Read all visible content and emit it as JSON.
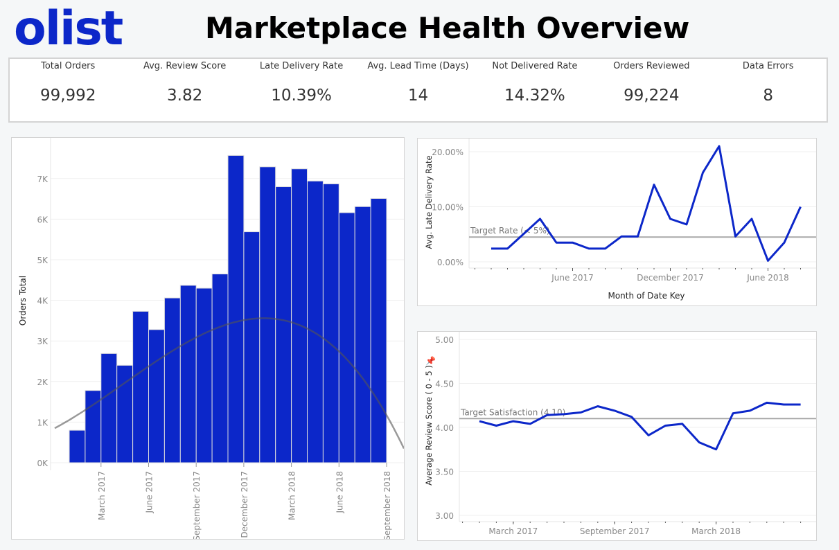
{
  "header": {
    "logo": "olist",
    "title": "Marketplace Health Overview"
  },
  "kpis": [
    {
      "label": "Total Orders",
      "value": "99,992"
    },
    {
      "label": "Avg. Review Score",
      "value": "3.82"
    },
    {
      "label": "Late Delivery Rate",
      "value": "10.39%"
    },
    {
      "label": "Avg. Lead Time (Days)",
      "value": "14"
    },
    {
      "label": "Not Delivered Rate",
      "value": "14.32%"
    },
    {
      "label": "Orders Reviewed",
      "value": "99,224"
    },
    {
      "label": "Data Errors",
      "value": "8"
    }
  ],
  "colors": {
    "accent": "#0c27c9",
    "trend": "#8a8a8a",
    "reference": "#a8a8a8"
  },
  "chart_data": [
    {
      "type": "bar",
      "ylabel": "Orders Total",
      "trend_line": "polynomial",
      "categories": [
        "Jan 2017",
        "Feb 2017",
        "Mar 2017",
        "Apr 2017",
        "May 2017",
        "Jun 2017",
        "Jul 2017",
        "Aug 2017",
        "Sep 2017",
        "Oct 2017",
        "Nov 2017",
        "Dec 2017",
        "Jan 2018",
        "Feb 2018",
        "Mar 2018",
        "Apr 2018",
        "May 2018",
        "Jun 2018",
        "Jul 2018",
        "Aug 2018"
      ],
      "values": [
        800,
        1780,
        2690,
        2400,
        3730,
        3280,
        4060,
        4370,
        4300,
        4650,
        7570,
        5690,
        7290,
        6800,
        7240,
        6940,
        6870,
        6160,
        6310,
        6510
      ],
      "ylim": [
        0,
        7800
      ],
      "yticks": [
        "0K",
        "1K",
        "2K",
        "3K",
        "4K",
        "5K",
        "6K",
        "7K"
      ],
      "xticks": [
        {
          "label": "March 2017",
          "index": 2
        },
        {
          "label": "June 2017",
          "index": 5
        },
        {
          "label": "September 2017",
          "index": 8
        },
        {
          "label": "December 2017",
          "index": 11
        },
        {
          "label": "March 2018",
          "index": 14
        },
        {
          "label": "June 2018",
          "index": 17
        },
        {
          "label": "September 2018",
          "index": 20
        }
      ],
      "grid": true
    },
    {
      "type": "line",
      "xlabel": "Month of Date Key",
      "ylabel": "Avg. Late Delivery Rate",
      "values": [
        2.4,
        2.4,
        5.1,
        7.8,
        3.5,
        3.5,
        2.4,
        2.4,
        4.6,
        4.6,
        14.0,
        7.8,
        6.8,
        16.2,
        21.0,
        4.6,
        7.8,
        0.2,
        3.5,
        10.0
      ],
      "ylim": [
        0,
        21.5
      ],
      "yticks": [
        {
          "label": "0.00%",
          "v": 0
        },
        {
          "label": "10.00%",
          "v": 10
        },
        {
          "label": "20.00%",
          "v": 20
        }
      ],
      "xticks": [
        {
          "label": "June 2017",
          "index": 5
        },
        {
          "label": "December 2017",
          "index": 11
        },
        {
          "label": "June 2018",
          "index": 17
        }
      ],
      "reference": {
        "label": "Target Rate (< 5%)",
        "value": 4.5
      },
      "grid": true
    },
    {
      "type": "line",
      "ylabel": "Average Review Score ( 0 - 5 )",
      "values": [
        4.07,
        4.02,
        4.07,
        4.04,
        4.14,
        4.15,
        4.17,
        4.24,
        4.19,
        4.12,
        3.91,
        4.02,
        4.04,
        3.83,
        3.75,
        4.16,
        4.19,
        4.28,
        4.26,
        4.26
      ],
      "ylim": [
        3,
        5
      ],
      "yticks": [
        {
          "label": "3.00",
          "v": 3
        },
        {
          "label": "3.50",
          "v": 3.5
        },
        {
          "label": "4.00",
          "v": 4
        },
        {
          "label": "4.50",
          "v": 4.5
        },
        {
          "label": "5.00",
          "v": 5
        }
      ],
      "xticks": [
        {
          "label": "March 2017",
          "index": 2
        },
        {
          "label": "September 2017",
          "index": 8
        },
        {
          "label": "March 2018",
          "index": 14
        }
      ],
      "reference": {
        "label": "Target Satisfaction (4.10)",
        "value": 4.1
      },
      "grid": true
    }
  ]
}
